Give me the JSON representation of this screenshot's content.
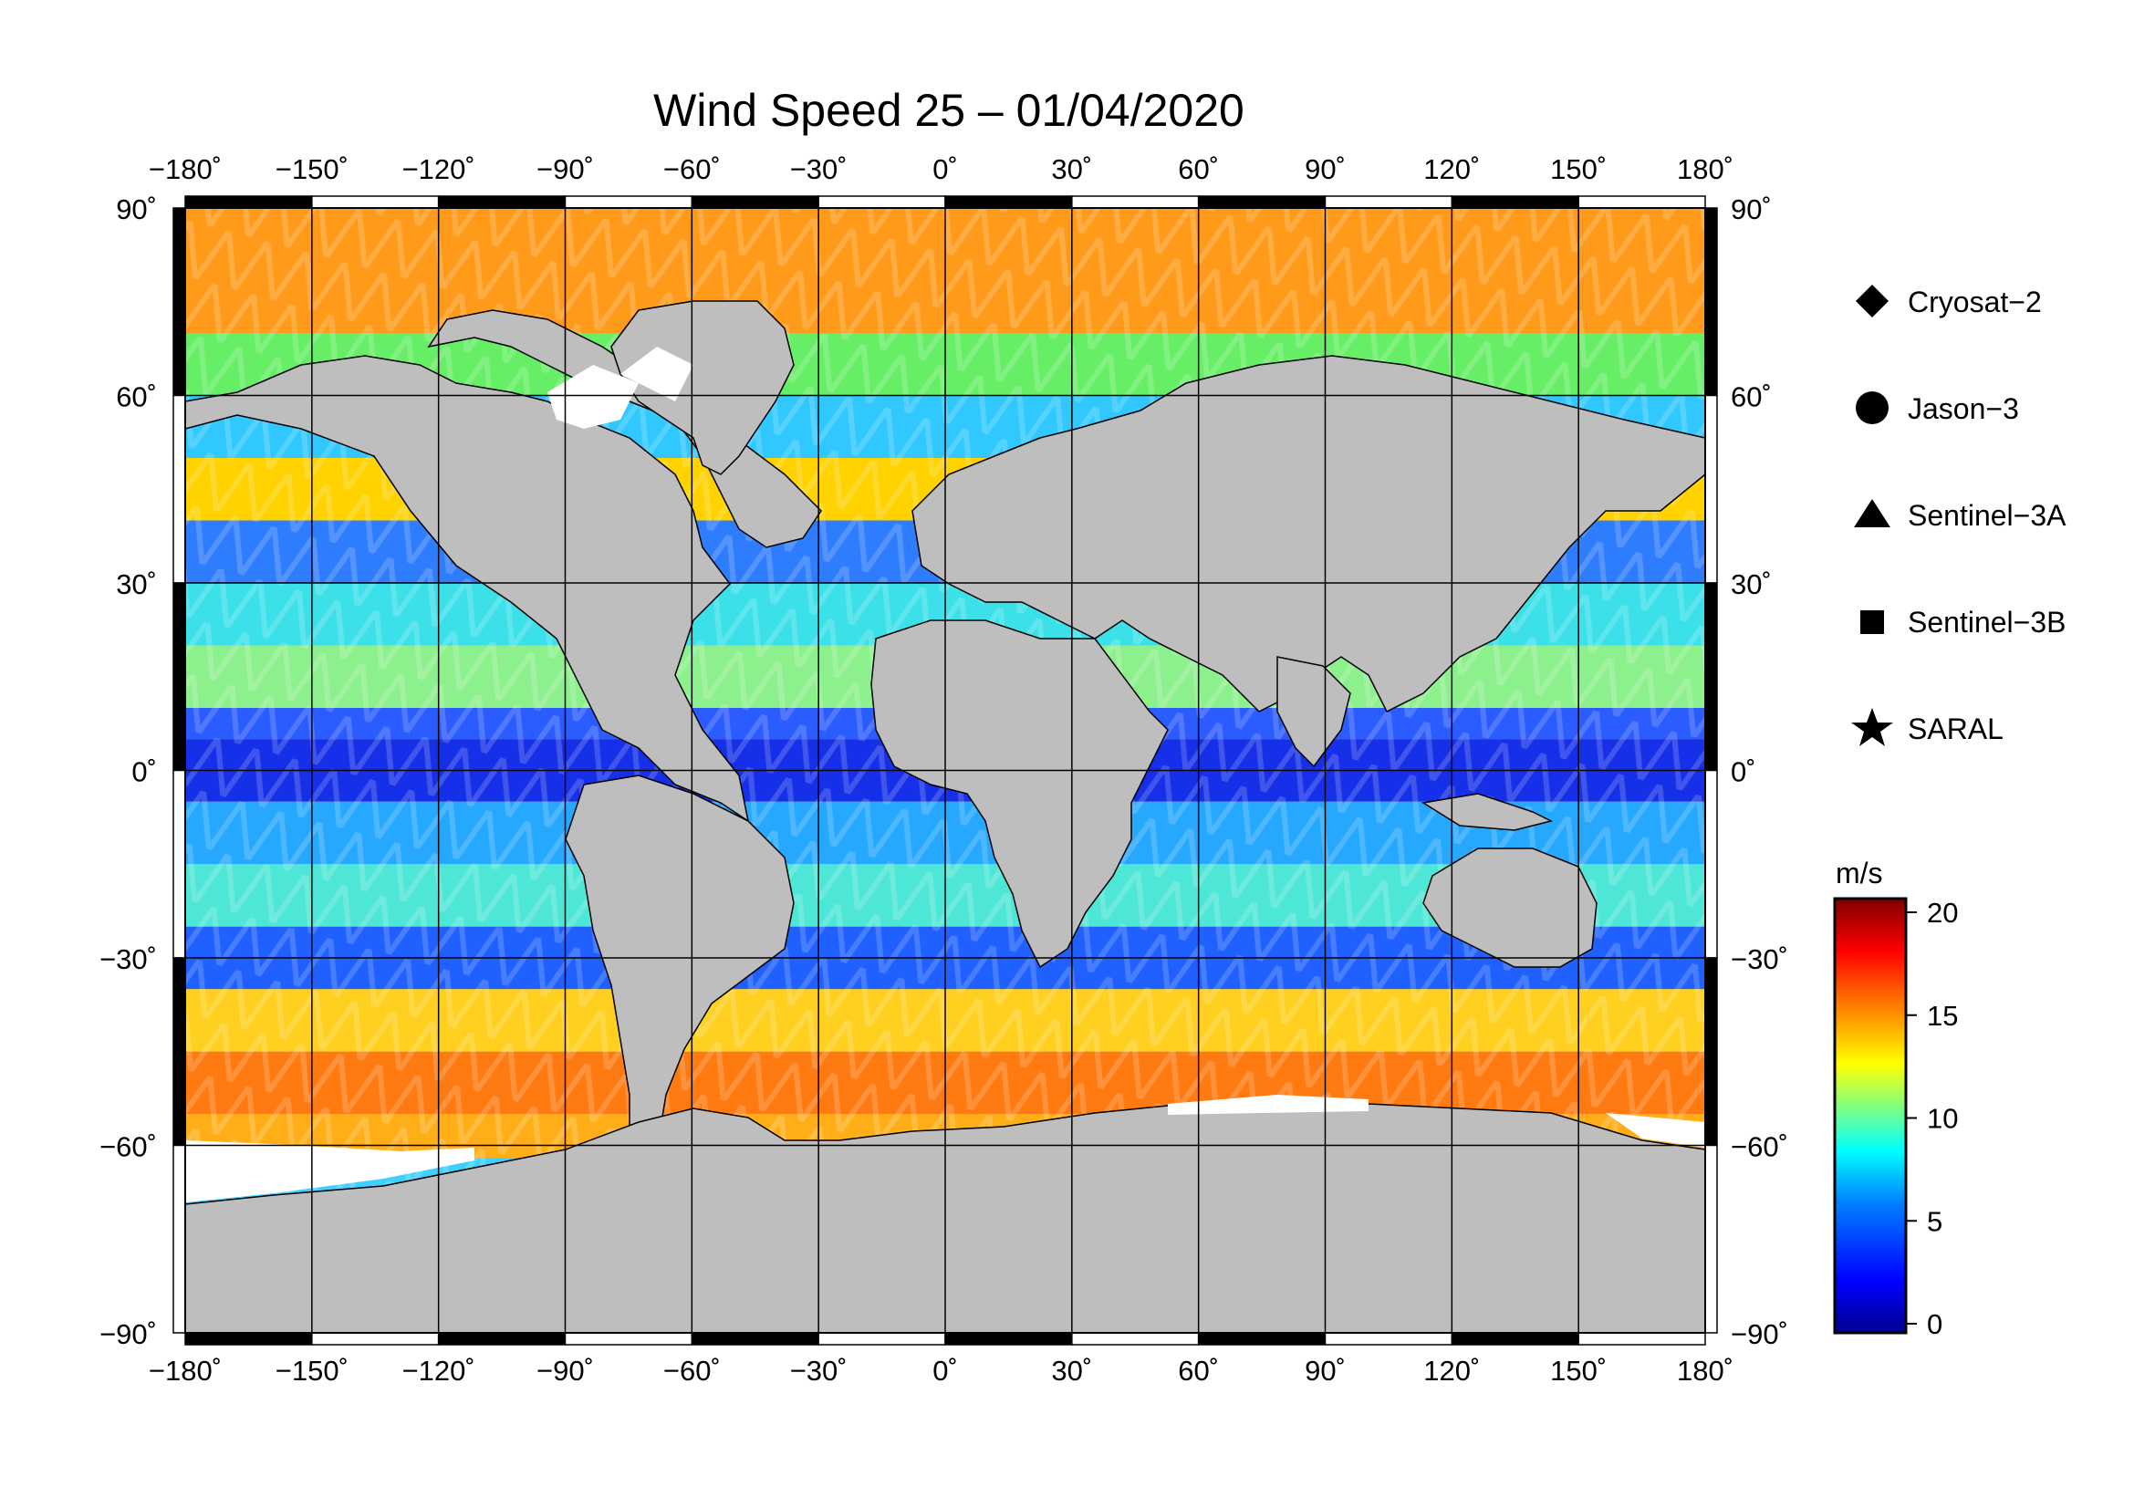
{
  "title": "Wind Speed 25 – 01/04/2020",
  "map": {
    "projection": "plate-carree",
    "lon_range": [
      -180,
      180
    ],
    "lat_range": [
      -90,
      90
    ],
    "lon_ticks": [
      "−180˚",
      "−150˚",
      "−120˚",
      "−90˚",
      "−60˚",
      "−30˚",
      "0˚",
      "30˚",
      "60˚",
      "90˚",
      "120˚",
      "150˚",
      "180˚"
    ],
    "lat_ticks": [
      "90˚",
      "60˚",
      "30˚",
      "0˚",
      "−30˚",
      "−60˚",
      "−90˚"
    ],
    "grid": true,
    "land_color": "#bebebe",
    "ice_color": "#ffffff",
    "high_wind_bands": "mid-latitude southern ocean and north atlantic/pacific",
    "low_wind_bands": "equatorial belt"
  },
  "legend": {
    "items": [
      {
        "marker": "diamond-icon",
        "label": "Cryosat−2"
      },
      {
        "marker": "circle-icon",
        "label": "Jason−3"
      },
      {
        "marker": "triangle-icon",
        "label": "Sentinel−3A"
      },
      {
        "marker": "square-icon",
        "label": "Sentinel−3B"
      },
      {
        "marker": "star-icon",
        "label": "SARAL"
      }
    ]
  },
  "colorbar": {
    "unit": "m/s",
    "min": 0,
    "max": 20,
    "ticks": [
      "20",
      "15",
      "10",
      "5",
      "0"
    ],
    "colormap": [
      "#00008f",
      "#0000ff",
      "#0080ff",
      "#00ffff",
      "#80ff80",
      "#ffff00",
      "#ff8000",
      "#ff0000",
      "#800000"
    ]
  }
}
